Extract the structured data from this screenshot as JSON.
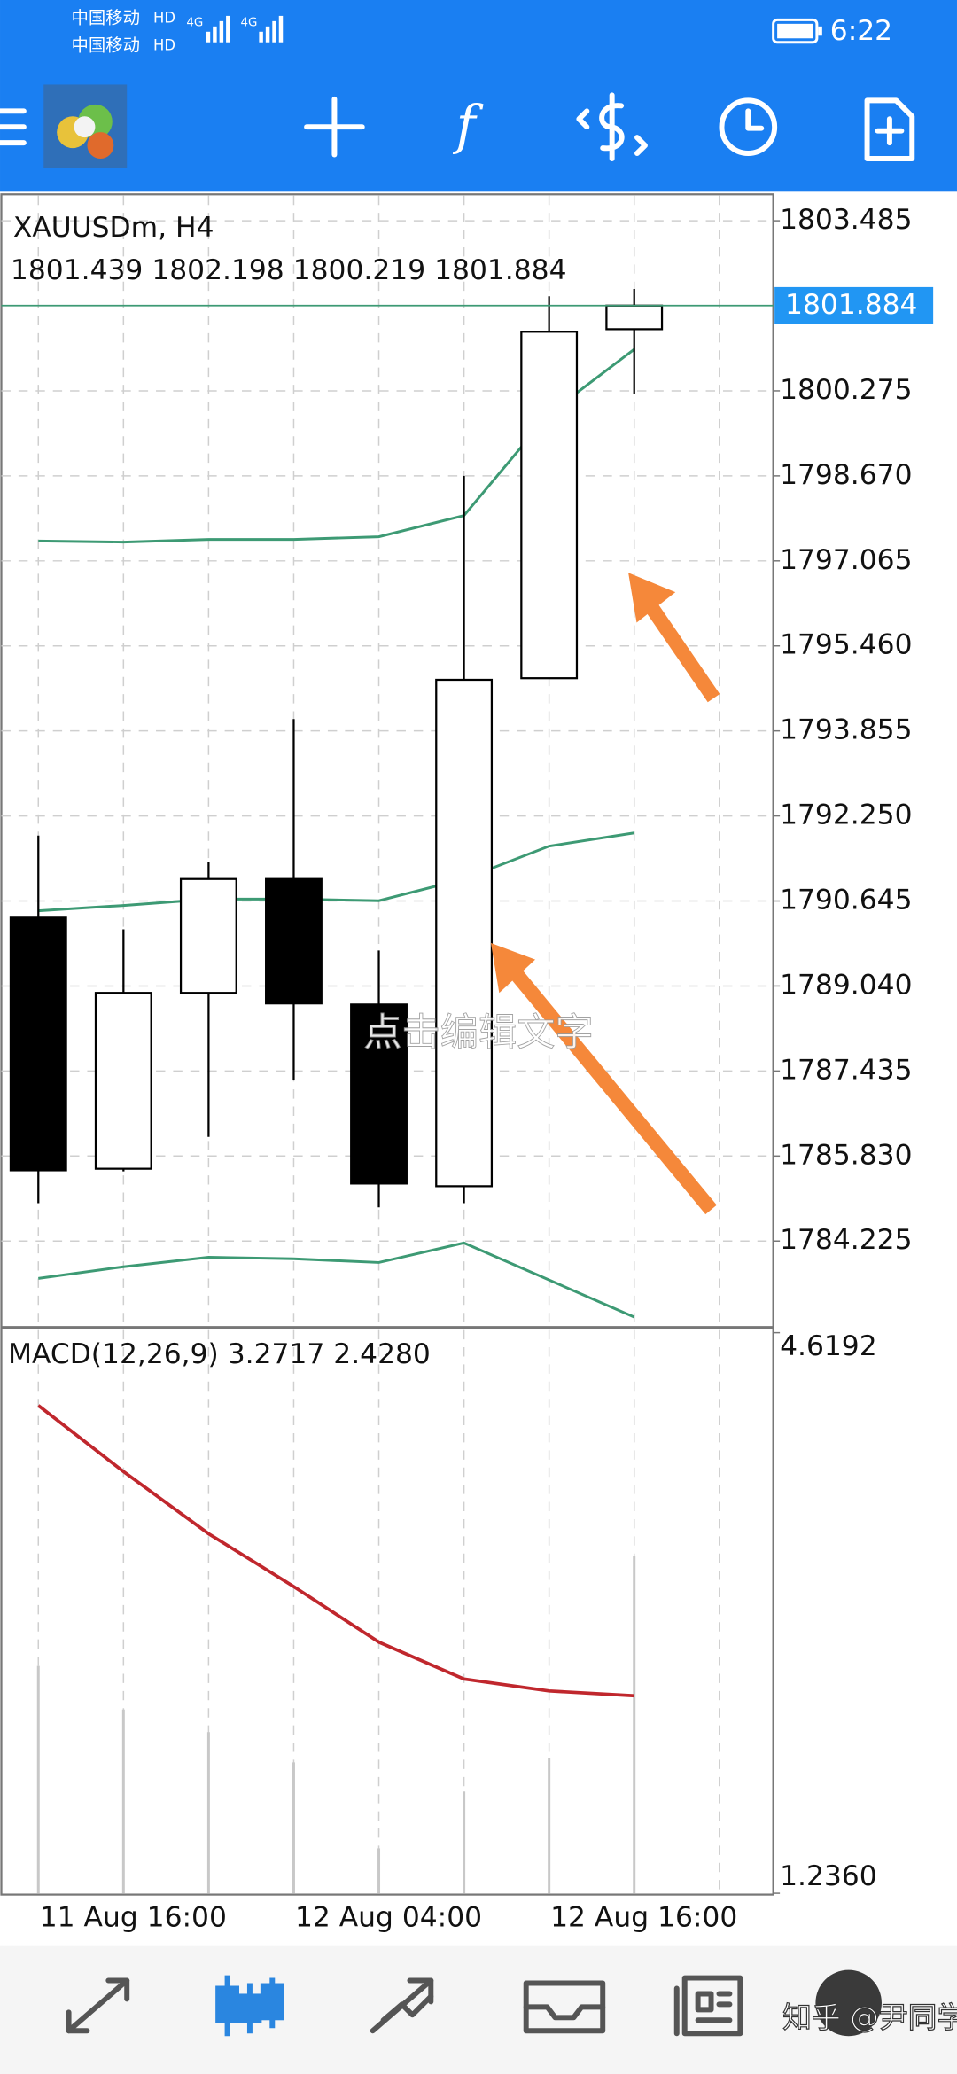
{
  "status_bar": {
    "carrier_1": "中国移动",
    "hd_1": "HD",
    "network_1": "4G",
    "carrier_2": "中国移动",
    "hd_2": "HD",
    "network_2": "4G",
    "time": "6:22"
  },
  "chart_data": [
    {
      "type": "candlestick",
      "title": "XAUUSDm, H4",
      "categories": [
        "11 Aug 16:00",
        null,
        null,
        "12 Aug 04:00",
        null,
        null,
        "12 Aug 16:00",
        null
      ],
      "open": [
        1790.33,
        1785.59,
        1788.91,
        1791.06,
        1788.69,
        1785.26,
        1794.85,
        1801.439
      ],
      "high": [
        1791.88,
        1790.11,
        1791.38,
        1794.08,
        1789.71,
        1798.67,
        1802.06,
        1802.198
      ],
      "low": [
        1784.94,
        1785.54,
        1786.19,
        1787.26,
        1784.86,
        1784.94,
        1794.85,
        1800.219
      ],
      "close": [
        1785.56,
        1788.91,
        1791.06,
        1788.71,
        1785.31,
        1794.82,
        1801.39,
        1801.884
      ],
      "up_color": "#ffffff",
      "down_color": "#000000",
      "bands": {
        "color": "#3d9a74",
        "upper": [
          1797.44,
          1797.42,
          1797.47,
          1797.47,
          1797.52,
          1797.92,
          1799.84,
          1801.06
        ],
        "middle": [
          1790.46,
          1790.56,
          1790.68,
          1790.68,
          1790.65,
          1791.06,
          1791.68,
          1791.93
        ],
        "lower": [
          1783.52,
          1783.74,
          1783.92,
          1783.89,
          1783.82,
          1784.19,
          1783.49,
          1782.79
        ]
      },
      "price_tag_color": "#2196f3",
      "ylim": [
        1782.62,
        1803.984
      ],
      "yticks": [
        1803.485,
        1800.275,
        {
          "value": 1798.67,
          "label": "1798.670"
        },
        1797.065,
        {
          "value": 1795.46,
          "label": "1795.460"
        },
        1793.855,
        {
          "value": 1792.25,
          "label": "1792.250"
        },
        1790.645,
        {
          "value": 1789.04,
          "label": "1789.040"
        },
        1787.435,
        {
          "value": 1785.83,
          "label": "1785.830"
        },
        1784.225
      ],
      "grid": true
    },
    {
      "type": "macd",
      "title": "MACD(12,26,9)",
      "readout": [
        "3.2717",
        "2.4280"
      ],
      "histogram": [
        2.608,
        2.345,
        2.209,
        2.026,
        1.507,
        1.85,
        2.05,
        3.2717
      ],
      "histogram_color": "#c8c8c8",
      "signal": [
        4.18,
        3.781,
        3.406,
        3.087,
        2.752,
        2.529,
        2.457,
        2.428
      ],
      "signal_color": "#c0272d",
      "ylim": [
        1.236,
        4.6192
      ],
      "yticks": [
        4.6192,
        {
          "value": 1.236,
          "label": "1.2360"
        }
      ]
    }
  ],
  "watermark": "点击编辑文字",
  "credit": "知乎 @尹同学"
}
